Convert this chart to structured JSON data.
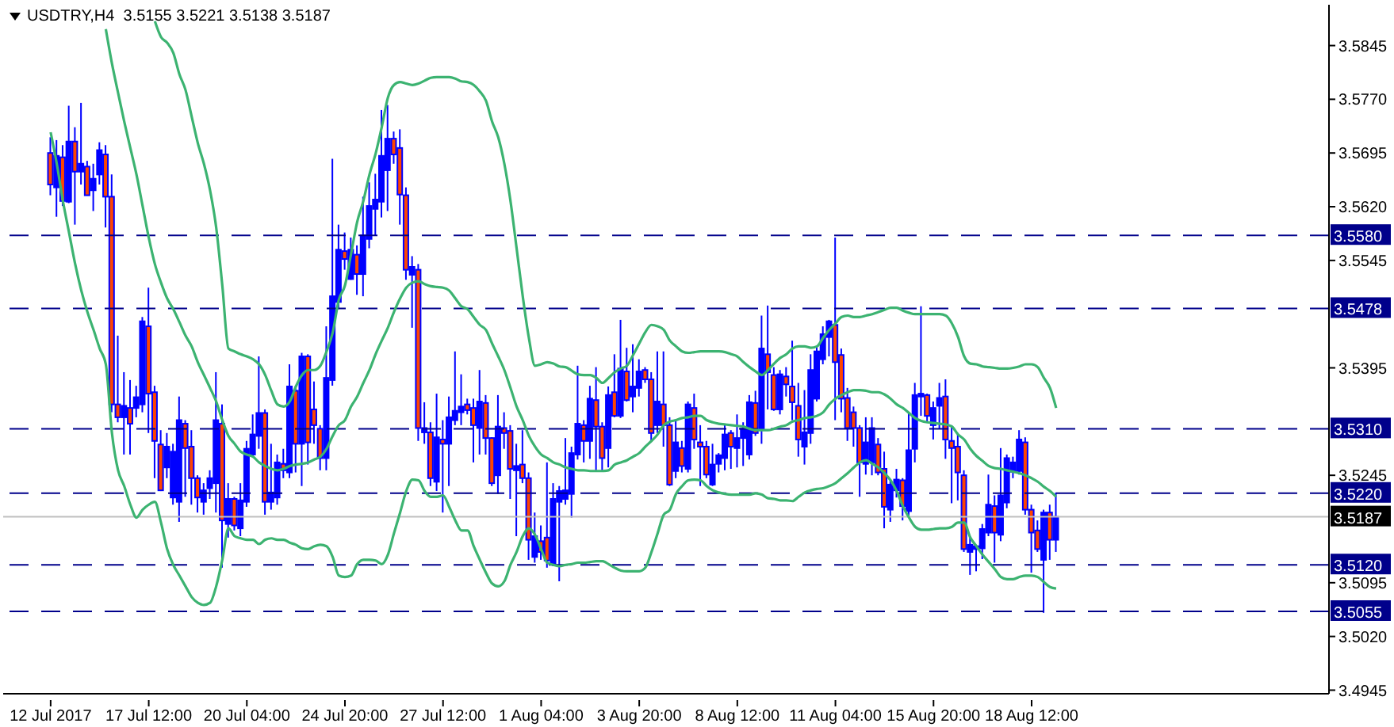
{
  "chart_data": {
    "type": "candlestick",
    "title": "USDTRY,H4  3.5155 3.5221 3.5138 3.5187",
    "color": "#0000ff",
    "categories": [
      "12 Jul 2017",
      null,
      null,
      null,
      null,
      null,
      null,
      null,
      null,
      null,
      null,
      null,
      null,
      null,
      null,
      null,
      "17 Jul 12:00",
      null,
      null,
      null,
      null,
      null,
      null,
      null,
      null,
      null,
      null,
      null,
      null,
      null,
      null,
      null,
      "20 Jul 04:00",
      null,
      null,
      null,
      null,
      null,
      null,
      null,
      null,
      null,
      null,
      null,
      null,
      null,
      null,
      null,
      "24 Jul 20:00",
      null,
      null,
      null,
      null,
      null,
      null,
      null,
      null,
      null,
      null,
      null,
      null,
      null,
      null,
      null,
      "27 Jul 12:00",
      null,
      null,
      null,
      null,
      null,
      null,
      null,
      null,
      null,
      null,
      null,
      null,
      null,
      null,
      null,
      "1 Aug 04:00",
      null,
      null,
      null,
      null,
      null,
      null,
      null,
      null,
      null,
      null,
      null,
      null,
      null,
      null,
      null,
      "3 Aug 20:00",
      null,
      null,
      null,
      null,
      null,
      null,
      null,
      null,
      null,
      null,
      null,
      null,
      null,
      null,
      null,
      "8 Aug 12:00",
      null,
      null,
      null,
      null,
      null,
      null,
      null,
      null,
      null,
      null,
      null,
      null,
      null,
      null,
      null,
      "11 Aug 04:00",
      null,
      null,
      null,
      null,
      null,
      null,
      null,
      null,
      null,
      null,
      null,
      null,
      null,
      null,
      null,
      "15 Aug 20:00",
      null,
      null,
      null,
      null,
      null,
      null,
      null,
      null,
      null,
      null,
      null,
      null,
      null,
      null,
      null,
      "18 Aug 12:00",
      null,
      null,
      null,
      null
    ],
    "ohlc": [
      [
        3.5695,
        3.5717,
        3.5636,
        3.5651
      ],
      [
        3.5647,
        3.5713,
        3.5606,
        3.5691
      ],
      [
        3.5689,
        3.5706,
        3.5621,
        3.5628
      ],
      [
        3.5627,
        3.5761,
        3.5625,
        3.5711
      ],
      [
        3.5711,
        3.5731,
        3.5595,
        3.5669
      ],
      [
        3.5669,
        3.5765,
        3.5651,
        3.568
      ],
      [
        3.5676,
        3.5684,
        3.5636,
        3.5636
      ],
      [
        3.5643,
        3.568,
        3.5614,
        3.5659
      ],
      [
        3.5665,
        3.571,
        3.5651,
        3.5699
      ],
      [
        3.5693,
        3.5706,
        3.5591,
        3.5634
      ],
      [
        3.5634,
        3.5665,
        3.5333,
        3.5344
      ],
      [
        3.5344,
        3.544,
        3.5319,
        3.5326
      ],
      [
        3.5326,
        3.5389,
        3.5274,
        3.5342
      ],
      [
        3.5339,
        3.5378,
        3.5274,
        3.5317
      ],
      [
        3.5339,
        3.537,
        3.5326,
        3.5354
      ],
      [
        3.5344,
        3.5466,
        3.5333,
        3.546
      ],
      [
        3.5453,
        3.5507,
        3.5304,
        3.5359
      ],
      [
        3.5361,
        3.537,
        3.5241,
        3.5293
      ],
      [
        3.5288,
        3.5308,
        3.5223,
        3.5224
      ],
      [
        3.5256,
        3.5304,
        3.5241,
        3.5285
      ],
      [
        3.5214,
        3.5289,
        3.5204,
        3.5278
      ],
      [
        3.5208,
        3.5355,
        3.518,
        3.5322
      ],
      [
        3.5317,
        3.5322,
        3.5215,
        3.5283
      ],
      [
        3.5285,
        3.5308,
        3.5204,
        3.5241
      ],
      [
        3.5241,
        3.5245,
        3.5193,
        3.5214
      ],
      [
        3.5208,
        3.5234,
        3.519,
        3.5224
      ],
      [
        3.5227,
        3.5252,
        3.5212,
        3.5241
      ],
      [
        3.5234,
        3.5389,
        3.5193,
        3.5322
      ],
      [
        3.5317,
        3.5344,
        3.5116,
        3.5182
      ],
      [
        3.5177,
        3.5234,
        3.5158,
        3.5212
      ],
      [
        3.5212,
        3.5215,
        3.5168,
        3.5175
      ],
      [
        3.5171,
        3.5234,
        3.516,
        3.521
      ],
      [
        3.5208,
        3.5293,
        3.5201,
        3.5282
      ],
      [
        3.5274,
        3.533,
        3.5271,
        3.5302
      ],
      [
        3.53,
        3.5411,
        3.5282,
        3.5332
      ],
      [
        3.5332,
        3.5337,
        3.519,
        3.5208
      ],
      [
        3.5208,
        3.5289,
        3.5197,
        3.5221
      ],
      [
        3.5214,
        3.5274,
        3.5204,
        3.5263
      ],
      [
        3.5261,
        3.5282,
        3.5241,
        3.5252
      ],
      [
        3.5249,
        3.54,
        3.5241,
        3.5369
      ],
      [
        3.5363,
        3.537,
        3.5249,
        3.5289
      ],
      [
        3.5289,
        3.5416,
        3.523,
        3.5411
      ],
      [
        3.5411,
        3.5414,
        3.526,
        3.5291
      ],
      [
        3.5337,
        3.5376,
        3.5289,
        3.5315
      ],
      [
        3.531,
        3.5315,
        3.5252,
        3.5269
      ],
      [
        3.5269,
        3.5453,
        3.5252,
        3.5381
      ],
      [
        3.5378,
        3.5687,
        3.537,
        3.5495
      ],
      [
        3.5487,
        3.5595,
        3.5477,
        3.556
      ],
      [
        3.5558,
        3.5584,
        3.5532,
        3.5547
      ],
      [
        3.5519,
        3.5577,
        3.5518,
        3.556
      ],
      [
        3.5553,
        3.5566,
        3.5497,
        3.5526
      ],
      [
        3.5526,
        3.5634,
        3.5495,
        3.558
      ],
      [
        3.5575,
        3.5654,
        3.5562,
        3.5621
      ],
      [
        3.5617,
        3.5666,
        3.558,
        3.563
      ],
      [
        3.5627,
        3.5755,
        3.5605,
        3.5691
      ],
      [
        3.5671,
        3.5762,
        3.5614,
        3.5715
      ],
      [
        3.5715,
        3.5725,
        3.568,
        3.5693
      ],
      [
        3.5702,
        3.5728,
        3.5595,
        3.5637
      ],
      [
        3.5636,
        3.5647,
        3.5518,
        3.5532
      ],
      [
        3.5525,
        3.5551,
        3.5451,
        3.5536
      ],
      [
        3.5532,
        3.554,
        3.5293,
        3.5311
      ],
      [
        3.5305,
        3.5347,
        3.5289,
        3.5311
      ],
      [
        3.5305,
        3.5319,
        3.523,
        3.5241
      ],
      [
        3.5236,
        3.5359,
        3.5223,
        3.5298
      ],
      [
        3.5295,
        3.5322,
        3.5193,
        3.5289
      ],
      [
        3.5289,
        3.5355,
        3.523,
        3.5326
      ],
      [
        3.5322,
        3.5418,
        3.5315,
        3.5335
      ],
      [
        3.5333,
        3.5386,
        3.5315,
        3.5341
      ],
      [
        3.5344,
        3.5352,
        3.533,
        3.5336
      ],
      [
        3.5339,
        3.5352,
        3.5263,
        3.5315
      ],
      [
        3.5311,
        3.5392,
        3.5274,
        3.5348
      ],
      [
        3.5346,
        3.5357,
        3.5274,
        3.5297
      ],
      [
        3.5297,
        3.5298,
        3.523,
        3.5234
      ],
      [
        3.5245,
        3.5357,
        3.5219,
        3.5313
      ],
      [
        3.5311,
        3.5333,
        3.5282,
        3.5304
      ],
      [
        3.5307,
        3.5315,
        3.5212,
        3.5254
      ],
      [
        3.5252,
        3.5289,
        3.516,
        3.5258
      ],
      [
        3.526,
        3.5308,
        3.5234,
        3.5241
      ],
      [
        3.5241,
        3.5249,
        3.5127,
        3.5155
      ],
      [
        3.5131,
        3.5193,
        3.5123,
        3.516
      ],
      [
        3.5153,
        3.5175,
        3.5127,
        3.5138
      ],
      [
        3.5158,
        3.5263,
        3.5116,
        3.5126
      ],
      [
        3.5121,
        3.5234,
        3.5118,
        3.5212
      ],
      [
        3.5208,
        3.523,
        3.5097,
        3.5223
      ],
      [
        3.5212,
        3.5297,
        3.5204,
        3.5224
      ],
      [
        3.5219,
        3.5285,
        3.5186,
        3.5276
      ],
      [
        3.5274,
        3.5398,
        3.5267,
        3.5317
      ],
      [
        3.5315,
        3.5322,
        3.5263,
        3.5293
      ],
      [
        3.5293,
        3.537,
        3.5268,
        3.5352
      ],
      [
        3.535,
        3.5396,
        3.5252,
        3.5313
      ],
      [
        3.5313,
        3.5319,
        3.5252,
        3.5269
      ],
      [
        3.5283,
        3.5369,
        3.5256,
        3.5357
      ],
      [
        3.5361,
        3.5414,
        3.5326,
        3.5328
      ],
      [
        3.5328,
        3.5462,
        3.5325,
        3.5394
      ],
      [
        3.539,
        3.5423,
        3.5348,
        3.535
      ],
      [
        3.5355,
        3.5428,
        3.5333,
        3.5369
      ],
      [
        3.5367,
        3.5407,
        3.5355,
        3.539
      ],
      [
        3.5392,
        3.5396,
        3.5374,
        3.5379
      ],
      [
        3.5379,
        3.5389,
        3.5293,
        3.5304
      ],
      [
        3.5315,
        3.5418,
        3.5304,
        3.5348
      ],
      [
        3.5344,
        3.5418,
        3.5285,
        3.5315
      ],
      [
        3.5315,
        3.5326,
        3.523,
        3.5232
      ],
      [
        3.5251,
        3.5322,
        3.5241,
        3.5291
      ],
      [
        3.5283,
        3.5293,
        3.5249,
        3.5258
      ],
      [
        3.5254,
        3.5348,
        3.5249,
        3.5344
      ],
      [
        3.5339,
        3.5359,
        3.5282,
        3.5295
      ],
      [
        3.5291,
        3.5315,
        3.523,
        3.5285
      ],
      [
        3.5285,
        3.5293,
        3.5241,
        3.5246
      ],
      [
        3.5232,
        3.5289,
        3.523,
        3.526
      ],
      [
        3.5261,
        3.5276,
        3.5249,
        3.5273
      ],
      [
        3.5269,
        3.5315,
        3.5252,
        3.5302
      ],
      [
        3.5304,
        3.5308,
        3.5254,
        3.5285
      ],
      [
        3.5283,
        3.533,
        3.5256,
        3.5297
      ],
      [
        3.5297,
        3.5319,
        3.5258,
        3.531
      ],
      [
        3.5274,
        3.5357,
        3.5267,
        3.5347
      ],
      [
        3.5346,
        3.5363,
        3.53,
        3.5304
      ],
      [
        3.531,
        3.5468,
        3.5289,
        3.5422
      ],
      [
        3.5414,
        3.5482,
        3.5337,
        3.5389
      ],
      [
        3.5385,
        3.5396,
        3.5335,
        3.5337
      ],
      [
        3.5337,
        3.5392,
        3.533,
        3.5386
      ],
      [
        3.5383,
        3.5396,
        3.5355,
        3.5372
      ],
      [
        3.5369,
        3.5433,
        3.5322,
        3.5347
      ],
      [
        3.5342,
        3.5374,
        3.5271,
        3.5295
      ],
      [
        3.5285,
        3.5364,
        3.526,
        3.5305
      ],
      [
        3.5304,
        3.5414,
        3.5289,
        3.5392
      ],
      [
        3.5352,
        3.5425,
        3.5348,
        3.5418
      ],
      [
        3.5407,
        3.5453,
        3.54,
        3.5442
      ],
      [
        3.5438,
        3.5462,
        3.5411,
        3.546
      ],
      [
        3.5455,
        3.5577,
        3.5322,
        3.5403
      ],
      [
        3.5413,
        3.5422,
        3.5333,
        3.5352
      ],
      [
        3.5353,
        3.5367,
        3.5293,
        3.5311
      ],
      [
        3.5333,
        3.5341,
        3.5285,
        3.5311
      ],
      [
        3.5311,
        3.5315,
        3.5215,
        3.5263
      ],
      [
        3.5261,
        3.5326,
        3.5246,
        3.5291
      ],
      [
        3.5263,
        3.5326,
        3.5245,
        3.5311
      ],
      [
        3.5288,
        3.5297,
        3.5245,
        3.5249
      ],
      [
        3.5254,
        3.5278,
        3.5171,
        3.5201
      ],
      [
        3.5197,
        3.5238,
        3.518,
        3.5232
      ],
      [
        3.5224,
        3.5254,
        3.5214,
        3.5239
      ],
      [
        3.5238,
        3.5241,
        3.5182,
        3.5202
      ],
      [
        3.5195,
        3.5333,
        3.5186,
        3.528
      ],
      [
        3.5282,
        3.5374,
        3.5263,
        3.5357
      ],
      [
        3.5355,
        3.5481,
        3.5328,
        3.5359
      ],
      [
        3.5357,
        3.5359,
        3.5319,
        3.5328
      ],
      [
        3.5315,
        3.5348,
        3.5295,
        3.5339
      ],
      [
        3.5342,
        3.5374,
        3.531,
        3.5353
      ],
      [
        3.5355,
        3.5379,
        3.5268,
        3.5295
      ],
      [
        3.5293,
        3.5315,
        3.5206,
        3.5283
      ],
      [
        3.5285,
        3.5304,
        3.521,
        3.5249
      ],
      [
        3.5245,
        3.5252,
        3.5138,
        3.5142
      ],
      [
        3.5138,
        3.516,
        3.5106,
        3.5148
      ],
      [
        3.5142,
        3.5148,
        3.5111,
        3.5146
      ],
      [
        3.5143,
        3.5177,
        3.5128,
        3.517
      ],
      [
        3.5165,
        3.5246,
        3.516,
        3.5204
      ],
      [
        3.5202,
        3.5217,
        3.5123,
        3.5165
      ],
      [
        3.5162,
        3.5283,
        3.5153,
        3.5217
      ],
      [
        3.5207,
        3.5274,
        3.5199,
        3.5269
      ],
      [
        3.525,
        3.5271,
        3.5241,
        3.5263
      ],
      [
        3.5251,
        3.5308,
        3.5246,
        3.5295
      ],
      [
        3.5291,
        3.5298,
        3.519,
        3.5197
      ],
      [
        3.5197,
        3.5204,
        3.5109,
        3.5165
      ],
      [
        3.5168,
        3.5182,
        3.5138,
        3.5142
      ],
      [
        3.5127,
        3.5197,
        3.5053,
        3.5193
      ],
      [
        3.5193,
        3.5204,
        3.5127,
        3.5155
      ],
      [
        3.5155,
        3.5221,
        3.5138,
        3.5187
      ]
    ],
    "series": [
      {
        "type": "line",
        "color": "#3cb371",
        "values": [
          null,
          null,
          null,
          null,
          null,
          null,
          null,
          null,
          null,
          null,
          null,
          null,
          null,
          null,
          null,
          null,
          null,
          3.5879,
          3.5857,
          3.5849,
          3.5835,
          3.5805,
          3.5783,
          3.5746,
          3.5709,
          3.568,
          3.5643,
          3.5591,
          3.551,
          3.5422,
          3.5418,
          3.5414,
          3.5411,
          3.5407,
          3.54,
          3.5385,
          3.5363,
          3.5344,
          3.5341,
          3.5348,
          3.5369,
          3.5385,
          3.5392,
          3.5392,
          3.5398,
          3.5418,
          3.5444,
          3.549,
          3.551,
          3.5554,
          3.5599,
          3.5628,
          3.5665,
          3.5694,
          3.5731,
          3.5772,
          3.579,
          3.5794,
          3.5792,
          3.579,
          3.5792,
          3.5796,
          3.58,
          3.5801,
          3.5801,
          3.5801,
          3.5799,
          3.5795,
          3.5794,
          3.579,
          3.5781,
          3.5768,
          3.5739,
          3.5717,
          3.568,
          3.5628,
          3.5562,
          3.5495,
          3.5437,
          3.5398,
          3.54,
          3.5403,
          3.5401,
          3.5397,
          3.5396,
          3.5391,
          3.5386,
          3.5385,
          3.5385,
          3.5381,
          3.5374,
          3.5381,
          3.5389,
          3.5394,
          3.5398,
          3.5413,
          3.5429,
          3.5445,
          3.5455,
          3.5453,
          3.5448,
          3.5433,
          3.5425,
          3.5418,
          3.5416,
          3.5417,
          3.5418,
          3.5418,
          3.5418,
          3.5418,
          3.5417,
          3.5414,
          3.5411,
          3.5403,
          3.5396,
          3.539,
          3.5385,
          3.5392,
          3.5401,
          3.5409,
          3.5414,
          3.5422,
          3.5425,
          3.5425,
          3.5423,
          3.5425,
          3.5437,
          3.5448,
          3.5457,
          3.5466,
          3.5468,
          3.5466,
          3.5466,
          3.5468,
          3.547,
          3.5473,
          3.5476,
          3.5479,
          3.5479,
          3.5475,
          3.5472,
          3.547,
          3.547,
          3.547,
          3.547,
          3.547,
          3.5468,
          3.5457,
          3.5438,
          3.5411,
          3.5401,
          3.54,
          3.5397,
          3.5396,
          3.5395,
          3.5394,
          3.5394,
          3.5395,
          3.5397,
          3.54,
          3.54,
          3.5396,
          3.5381,
          3.5367,
          3.5339
        ]
      },
      {
        "type": "line",
        "color": "#3cb371",
        "values": [
          null,
          null,
          null,
          null,
          null,
          null,
          null,
          null,
          null,
          3.5868,
          3.582,
          3.5779,
          3.5739,
          3.5702,
          3.5665,
          3.5621,
          3.5577,
          3.554,
          3.5514,
          3.5492,
          3.5477,
          3.5459,
          3.544,
          3.5425,
          3.5403,
          3.5385,
          3.5367,
          3.5348,
          3.5322,
          3.53,
          3.5289,
          3.5278,
          3.5274,
          3.5271,
          3.5263,
          3.5258,
          3.5254,
          3.5252,
          3.5254,
          3.5258,
          3.526,
          3.5261,
          3.5263,
          3.5267,
          3.5271,
          3.5282,
          3.53,
          3.5315,
          3.5322,
          3.5341,
          3.5355,
          3.5374,
          3.5392,
          3.5414,
          3.5433,
          3.5451,
          3.5473,
          3.5492,
          3.5507,
          3.5514,
          3.5516,
          3.5512,
          3.5509,
          3.5508,
          3.5507,
          3.5503,
          3.5492,
          3.5481,
          3.5477,
          3.5466,
          3.5455,
          3.5448,
          3.5429,
          3.5411,
          3.5392,
          3.5367,
          3.5341,
          3.5322,
          3.53,
          3.5285,
          3.5274,
          3.5269,
          3.5263,
          3.526,
          3.5256,
          3.5254,
          3.5252,
          3.5252,
          3.5251,
          3.5251,
          3.5251,
          3.5252,
          3.526,
          3.5263,
          3.5266,
          3.5271,
          3.5276,
          3.5285,
          3.5293,
          3.5302,
          3.5315,
          3.532,
          3.5322,
          3.5325,
          3.5326,
          3.5328,
          3.5328,
          3.5322,
          3.5319,
          3.5317,
          3.5316,
          3.5315,
          3.5314,
          3.5313,
          3.531,
          3.5308,
          3.5308,
          3.5308,
          3.531,
          3.5313,
          3.5315,
          3.532,
          3.5322,
          3.5325,
          3.5326,
          3.5328,
          3.5333,
          3.5344,
          3.5352,
          3.5357,
          3.5361,
          3.5364,
          3.5364,
          3.5363,
          3.5361,
          3.5361,
          3.5358,
          3.5352,
          3.5344,
          3.5339,
          3.5332,
          3.5325,
          3.5321,
          3.5319,
          3.5318,
          3.5317,
          3.5316,
          3.5313,
          3.5302,
          3.5295,
          3.5282,
          3.5272,
          3.5265,
          3.5258,
          3.5255,
          3.5254,
          3.5252,
          3.525,
          3.5248,
          3.5245,
          3.5241,
          3.5236,
          3.5229,
          3.5223,
          3.5215
        ]
      },
      {
        "type": "line",
        "color": "#3cb371",
        "values": [
          3.5724,
          3.568,
          3.5628,
          3.5584,
          3.554,
          3.5503,
          3.5473,
          3.5448,
          3.5422,
          3.54,
          3.5304,
          3.5252,
          3.523,
          3.5204,
          3.5186,
          3.5197,
          3.5204,
          3.5208,
          3.5179,
          3.5142,
          3.512,
          3.5105,
          3.509,
          3.5075,
          3.5067,
          3.5064,
          3.5067,
          3.509,
          3.5127,
          3.5171,
          3.516,
          3.5157,
          3.5155,
          3.5155,
          3.5149,
          3.5155,
          3.5157,
          3.5155,
          3.5155,
          3.5151,
          3.5148,
          3.5143,
          3.5142,
          3.5146,
          3.5148,
          3.5146,
          3.5131,
          3.5105,
          3.5103,
          3.5105,
          3.5121,
          3.5127,
          3.5127,
          3.5126,
          3.5121,
          3.5134,
          3.5164,
          3.5193,
          3.5223,
          3.5239,
          3.5238,
          3.5223,
          3.5215,
          3.5215,
          3.5217,
          3.5201,
          3.5182,
          3.5168,
          3.5168,
          3.5146,
          3.5127,
          3.5109,
          3.5094,
          3.509,
          3.5097,
          3.512,
          3.5138,
          3.516,
          3.5171,
          3.5162,
          3.5142,
          3.5123,
          3.512,
          3.5118,
          3.512,
          3.5121,
          3.5123,
          3.5123,
          3.5124,
          3.5125,
          3.5125,
          3.5121,
          3.5116,
          3.5112,
          3.5111,
          3.5111,
          3.5111,
          3.5116,
          3.5138,
          3.5164,
          3.519,
          3.5197,
          3.5219,
          3.523,
          3.5238,
          3.5239,
          3.5238,
          3.523,
          3.5224,
          3.5221,
          3.5219,
          3.5218,
          3.5218,
          3.5218,
          3.5218,
          3.522,
          3.5218,
          3.5213,
          3.5212,
          3.521,
          3.521,
          3.5209,
          3.5215,
          3.5221,
          3.5224,
          3.5226,
          3.5227,
          3.523,
          3.5234,
          3.5241,
          3.5248,
          3.5256,
          3.5263,
          3.5266,
          3.5261,
          3.5256,
          3.5248,
          3.5238,
          3.5223,
          3.5202,
          3.5186,
          3.5173,
          3.5169,
          3.5169,
          3.517,
          3.5171,
          3.5171,
          3.5173,
          3.5179,
          3.5179,
          3.5158,
          3.5146,
          3.5134,
          3.5124,
          3.5114,
          3.5103,
          3.51,
          3.51,
          3.5103,
          3.5105,
          3.5105,
          3.5103,
          3.5096,
          3.5089,
          3.5087
        ]
      }
    ],
    "ylim": [
      3.494,
      3.5902
    ],
    "yticks": [
      3.5845,
      {
        "value": 3.577,
        "label": "3.5770"
      },
      3.5695,
      {
        "value": 3.562,
        "label": "3.5620"
      },
      3.5545,
      3.5395,
      3.5245,
      3.5095,
      {
        "value": 3.502,
        "label": "3.5020"
      },
      3.4945
    ],
    "ref_lines": [
      {
        "axis": "y",
        "value": 3.558,
        "label": "3.5580",
        "color": "#00008b",
        "line_style": "dashed"
      },
      {
        "axis": "y",
        "value": 3.5478,
        "label": "3.5478",
        "color": "#00008b",
        "line_style": "dashed"
      },
      {
        "axis": "y",
        "value": 3.531,
        "label": "3.5310",
        "color": "#00008b",
        "line_style": "dashed"
      },
      {
        "axis": "y",
        "value": 3.522,
        "label": "3.5220",
        "color": "#00008b",
        "line_style": "dashed"
      },
      {
        "axis": "y",
        "value": 3.512,
        "label": "3.5120",
        "color": "#00008b",
        "line_style": "dashed"
      },
      {
        "axis": "y",
        "value": 3.5055,
        "label": "3.5055",
        "color": "#00008b",
        "line_style": "dashed"
      },
      {
        "axis": "y",
        "value": 3.5187,
        "label": "3.5187",
        "color": "#c0c0c0",
        "line_style": "solid"
      }
    ]
  }
}
